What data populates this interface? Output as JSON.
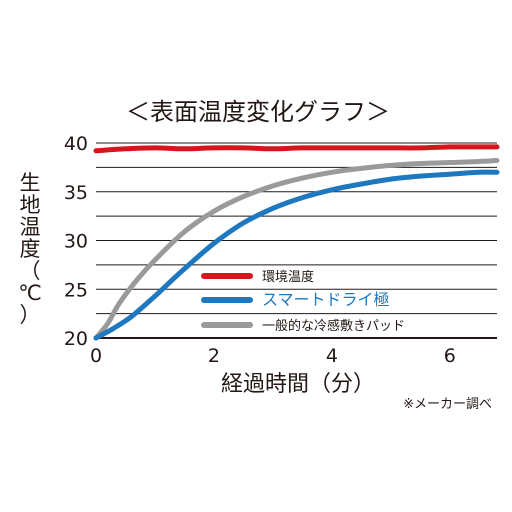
{
  "chart_data": {
    "type": "line",
    "title": "＜表面温度変化グラフ＞",
    "xlabel": "経過時間（分）",
    "ylabel_chars": [
      "生",
      "地",
      "温",
      "度",
      "（",
      "℃",
      "）"
    ],
    "x_ticks": [
      "0",
      "2",
      "4",
      "6"
    ],
    "y_ticks": [
      "40",
      "35",
      "30",
      "25",
      "20"
    ],
    "xlim": [
      0,
      6.8
    ],
    "ylim": [
      20,
      40
    ],
    "grid": true,
    "legend_position": "center",
    "series": [
      {
        "name": "環境温度",
        "color": "#d7151f",
        "points": [
          [
            0,
            39.2
          ],
          [
            0.5,
            39.4
          ],
          [
            1,
            39.5
          ],
          [
            1.5,
            39.4
          ],
          [
            2,
            39.5
          ],
          [
            2.5,
            39.5
          ],
          [
            3,
            39.4
          ],
          [
            3.5,
            39.5
          ],
          [
            4,
            39.5
          ],
          [
            4.5,
            39.5
          ],
          [
            5,
            39.5
          ],
          [
            5.5,
            39.5
          ],
          [
            6,
            39.6
          ],
          [
            6.5,
            39.6
          ],
          [
            6.8,
            39.6
          ]
        ]
      },
      {
        "name": "スマートドライ極",
        "color": "#1e78c0",
        "points": [
          [
            0,
            20.0
          ],
          [
            0.3,
            21.0
          ],
          [
            0.6,
            22.2
          ],
          [
            1,
            24.3
          ],
          [
            1.5,
            27.1
          ],
          [
            2,
            29.7
          ],
          [
            2.5,
            31.8
          ],
          [
            3,
            33.3
          ],
          [
            3.5,
            34.4
          ],
          [
            4,
            35.2
          ],
          [
            4.5,
            35.8
          ],
          [
            5,
            36.3
          ],
          [
            5.5,
            36.6
          ],
          [
            6,
            36.8
          ],
          [
            6.5,
            37.0
          ],
          [
            6.8,
            37.0
          ]
        ]
      },
      {
        "name": "一般的な冷感敷きパッド",
        "color": "#9a9a9a",
        "points": [
          [
            0,
            20.0
          ],
          [
            0.2,
            21.5
          ],
          [
            0.4,
            23.6
          ],
          [
            0.7,
            26.0
          ],
          [
            1,
            28.0
          ],
          [
            1.5,
            30.9
          ],
          [
            2,
            33.0
          ],
          [
            2.5,
            34.5
          ],
          [
            3,
            35.6
          ],
          [
            3.5,
            36.4
          ],
          [
            4,
            37.0
          ],
          [
            4.5,
            37.4
          ],
          [
            5,
            37.7
          ],
          [
            5.5,
            37.9
          ],
          [
            6,
            38.0
          ],
          [
            6.5,
            38.1
          ],
          [
            6.8,
            38.2
          ]
        ]
      }
    ],
    "note": "※メーカー調べ"
  }
}
